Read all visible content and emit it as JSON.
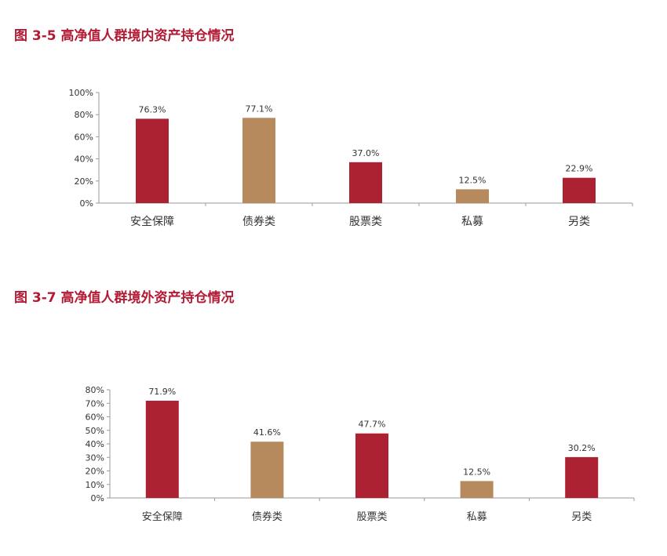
{
  "colors": {
    "title": "#b31b34",
    "red": "#ac2232",
    "tan": "#b78a5e",
    "axis": "#9a9a9a",
    "text": "#333333"
  },
  "titles": {
    "fig1": "图 3-5 高净值人群境内资产持仓情况",
    "fig2": "图 3-7 高净值人群境外资产持仓情况"
  },
  "chart_data": [
    {
      "type": "bar",
      "title": "图 3-5 高净值人群境内资产持仓情况",
      "categories": [
        "安全保障",
        "债券类",
        "股票类",
        "私募",
        "另类"
      ],
      "values": [
        76.3,
        77.1,
        37.0,
        12.5,
        22.9
      ],
      "value_labels": [
        "76.3%",
        "77.1%",
        "37.0%",
        "12.5%",
        "22.9%"
      ],
      "bar_colors": [
        "#ac2232",
        "#b78a5e",
        "#ac2232",
        "#b78a5e",
        "#ac2232"
      ],
      "ylim": [
        0,
        100
      ],
      "yticks": [
        0,
        20,
        40,
        60,
        80,
        100
      ],
      "ytick_labels": [
        "0%",
        "20%",
        "40%",
        "60%",
        "80%",
        "100%"
      ],
      "grid": false,
      "xlabel": "",
      "ylabel": ""
    },
    {
      "type": "bar",
      "title": "图 3-7 高净值人群境外资产持仓情况",
      "categories": [
        "安全保障",
        "债券类",
        "股票类",
        "私募",
        "另类"
      ],
      "values": [
        71.9,
        41.6,
        47.7,
        12.5,
        30.2
      ],
      "value_labels": [
        "71.9%",
        "41.6%",
        "47.7%",
        "12.5%",
        "30.2%"
      ],
      "bar_colors": [
        "#ac2232",
        "#b78a5e",
        "#ac2232",
        "#b78a5e",
        "#ac2232"
      ],
      "ylim": [
        0,
        80
      ],
      "yticks": [
        0,
        10,
        20,
        30,
        40,
        50,
        60,
        70,
        80
      ],
      "ytick_labels": [
        "0%",
        "10%",
        "20%",
        "30%",
        "40%",
        "50%",
        "60%",
        "70%",
        "80%"
      ],
      "grid": false,
      "xlabel": "",
      "ylabel": ""
    }
  ]
}
